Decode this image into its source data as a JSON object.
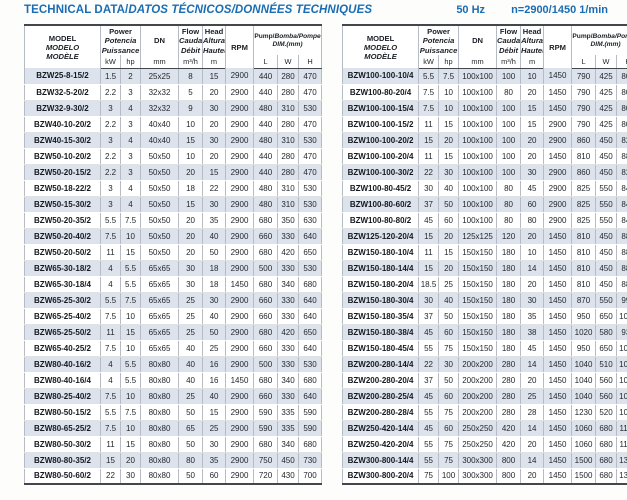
{
  "title": {
    "en": "TECHNICAL DATA/",
    "intl": "DATOS TÉCNICOS/DONNÉES TECHNIQUES"
  },
  "specs": {
    "frequency": "50 Hz",
    "speed": "n=2900/1450 1/min"
  },
  "colors": {
    "accent_blue": "#1a6db3",
    "row_shade": "#dde3ed",
    "border_dark": "#43474d",
    "grid_line": "#b6bcc6"
  },
  "header": {
    "model": [
      "MODEL",
      "MODELO",
      "MODÈLE"
    ],
    "power": [
      "Power",
      "Potencia",
      "Puissance"
    ],
    "dn": "DN",
    "flow": [
      "Flow",
      "Caudal",
      "Débit"
    ],
    "head": [
      "Head",
      "Altura",
      "Hauteur"
    ],
    "rpm": "RPM",
    "dim": [
      "Pump/",
      "Bomba/Pompe",
      "DIM.(mm)"
    ],
    "units": {
      "kw": "kW",
      "hp": "hp",
      "dn": "mm",
      "flow": "m³/h",
      "head": "m",
      "l": "L",
      "w": "W",
      "h": "H"
    }
  },
  "left_table": {
    "rows": [
      [
        "BZW25-8-15/2",
        "1.5",
        "2",
        "25x25",
        "8",
        "15",
        "2900",
        "440",
        "280",
        "470"
      ],
      [
        "BZW32-5-20/2",
        "2.2",
        "3",
        "32x32",
        "5",
        "20",
        "2900",
        "440",
        "280",
        "470"
      ],
      [
        "BZW32-9-30/2",
        "3",
        "4",
        "32x32",
        "9",
        "30",
        "2900",
        "480",
        "310",
        "530"
      ],
      [
        "BZW40-10-20/2",
        "2.2",
        "3",
        "40x40",
        "10",
        "20",
        "2900",
        "440",
        "280",
        "470"
      ],
      [
        "BZW40-15-30/2",
        "3",
        "4",
        "40x40",
        "15",
        "30",
        "2900",
        "480",
        "310",
        "530"
      ],
      [
        "BZW50-10-20/2",
        "2.2",
        "3",
        "50x50",
        "10",
        "20",
        "2900",
        "440",
        "280",
        "470"
      ],
      [
        "BZW50-20-15/2",
        "2.2",
        "3",
        "50x50",
        "20",
        "15",
        "2900",
        "440",
        "280",
        "470"
      ],
      [
        "BZW50-18-22/2",
        "3",
        "4",
        "50x50",
        "18",
        "22",
        "2900",
        "480",
        "310",
        "530"
      ],
      [
        "BZW50-15-30/2",
        "3",
        "4",
        "50x50",
        "15",
        "30",
        "2900",
        "480",
        "310",
        "530"
      ],
      [
        "BZW50-20-35/2",
        "5.5",
        "7.5",
        "50x50",
        "20",
        "35",
        "2900",
        "680",
        "350",
        "630"
      ],
      [
        "BZW50-20-40/2",
        "7.5",
        "10",
        "50x50",
        "20",
        "40",
        "2900",
        "660",
        "330",
        "640"
      ],
      [
        "BZW50-20-50/2",
        "11",
        "15",
        "50x50",
        "20",
        "50",
        "2900",
        "680",
        "420",
        "650"
      ],
      [
        "BZW65-30-18/2",
        "4",
        "5.5",
        "65x65",
        "30",
        "18",
        "2900",
        "500",
        "330",
        "530"
      ],
      [
        "BZW65-30-18/4",
        "4",
        "5.5",
        "65x65",
        "30",
        "18",
        "1450",
        "680",
        "340",
        "680"
      ],
      [
        "BZW65-25-30/2",
        "5.5",
        "7.5",
        "65x65",
        "25",
        "30",
        "2900",
        "660",
        "330",
        "640"
      ],
      [
        "BZW65-25-40/2",
        "7.5",
        "10",
        "65x65",
        "25",
        "40",
        "2900",
        "660",
        "330",
        "640"
      ],
      [
        "BZW65-25-50/2",
        "11",
        "15",
        "65x65",
        "25",
        "50",
        "2900",
        "680",
        "420",
        "650"
      ],
      [
        "BZW65-40-25/2",
        "7.5",
        "10",
        "65x65",
        "40",
        "25",
        "2900",
        "660",
        "330",
        "640"
      ],
      [
        "BZW80-40-16/2",
        "4",
        "5.5",
        "80x80",
        "40",
        "16",
        "2900",
        "500",
        "330",
        "530"
      ],
      [
        "BZW80-40-16/4",
        "4",
        "5.5",
        "80x80",
        "40",
        "16",
        "1450",
        "680",
        "340",
        "680"
      ],
      [
        "BZW80-25-40/2",
        "7.5",
        "10",
        "80x80",
        "25",
        "40",
        "2900",
        "660",
        "330",
        "640"
      ],
      [
        "BZW80-50-15/2",
        "5.5",
        "7.5",
        "80x80",
        "50",
        "15",
        "2900",
        "590",
        "335",
        "590"
      ],
      [
        "BZW80-65-25/2",
        "7.5",
        "10",
        "80x80",
        "65",
        "25",
        "2900",
        "590",
        "335",
        "590"
      ],
      [
        "BZW80-50-30/2",
        "11",
        "15",
        "80x80",
        "50",
        "30",
        "2900",
        "680",
        "340",
        "680"
      ],
      [
        "BZW80-80-35/2",
        "15",
        "20",
        "80x80",
        "80",
        "35",
        "2900",
        "750",
        "450",
        "730"
      ],
      [
        "BZW80-50-60/2",
        "22",
        "30",
        "80x80",
        "50",
        "60",
        "2900",
        "720",
        "430",
        "700"
      ]
    ]
  },
  "right_table": {
    "rows": [
      [
        "BZW100-100-10/4",
        "5.5",
        "7.5",
        "100x100",
        "100",
        "10",
        "1450",
        "790",
        "425",
        "800"
      ],
      [
        "BZW100-80-20/4",
        "7.5",
        "10",
        "100x100",
        "80",
        "20",
        "1450",
        "790",
        "425",
        "800"
      ],
      [
        "BZW100-100-15/4",
        "7.5",
        "10",
        "100x100",
        "100",
        "15",
        "1450",
        "790",
        "425",
        "800"
      ],
      [
        "BZW100-100-15/2",
        "11",
        "15",
        "100x100",
        "100",
        "15",
        "2900",
        "790",
        "425",
        "800"
      ],
      [
        "BZW100-100-20/2",
        "15",
        "20",
        "100x100",
        "100",
        "20",
        "2900",
        "860",
        "450",
        "820"
      ],
      [
        "BZW100-100-20/4",
        "11",
        "15",
        "100x100",
        "100",
        "20",
        "1450",
        "810",
        "450",
        "880"
      ],
      [
        "BZW100-100-30/2",
        "22",
        "30",
        "100x100",
        "100",
        "30",
        "2900",
        "860",
        "450",
        "820"
      ],
      [
        "BZW100-80-45/2",
        "30",
        "40",
        "100x100",
        "80",
        "45",
        "2900",
        "825",
        "550",
        "840"
      ],
      [
        "BZW100-80-60/2",
        "37",
        "50",
        "100x100",
        "80",
        "60",
        "2900",
        "825",
        "550",
        "840"
      ],
      [
        "BZW100-80-80/2",
        "45",
        "60",
        "100x100",
        "80",
        "80",
        "2900",
        "825",
        "550",
        "840"
      ],
      [
        "BZW125-120-20/4",
        "15",
        "20",
        "125x125",
        "120",
        "20",
        "1450",
        "810",
        "450",
        "880"
      ],
      [
        "BZW150-180-10/4",
        "11",
        "15",
        "150x150",
        "180",
        "10",
        "1450",
        "810",
        "450",
        "880"
      ],
      [
        "BZW150-180-14/4",
        "15",
        "20",
        "150x150",
        "180",
        "14",
        "1450",
        "810",
        "450",
        "880"
      ],
      [
        "BZW150-180-20/4",
        "18.5",
        "25",
        "150x150",
        "180",
        "20",
        "1450",
        "810",
        "450",
        "880"
      ],
      [
        "BZW150-180-30/4",
        "30",
        "40",
        "150x150",
        "180",
        "30",
        "1450",
        "870",
        "550",
        "990"
      ],
      [
        "BZW150-180-35/4",
        "37",
        "50",
        "150x150",
        "180",
        "35",
        "1450",
        "950",
        "650",
        "1065"
      ],
      [
        "BZW150-180-38/4",
        "45",
        "60",
        "150x150",
        "180",
        "38",
        "1450",
        "1020",
        "580",
        "930"
      ],
      [
        "BZW150-180-45/4",
        "55",
        "75",
        "150x150",
        "180",
        "45",
        "1450",
        "950",
        "650",
        "1065"
      ],
      [
        "BZW200-280-14/4",
        "22",
        "30",
        "200x200",
        "280",
        "14",
        "1450",
        "1040",
        "510",
        "1020"
      ],
      [
        "BZW200-280-20/4",
        "37",
        "50",
        "200x200",
        "280",
        "20",
        "1450",
        "1040",
        "560",
        "1020"
      ],
      [
        "BZW200-280-25/4",
        "45",
        "60",
        "200x200",
        "280",
        "25",
        "1450",
        "1040",
        "560",
        "1020"
      ],
      [
        "BZW200-280-28/4",
        "55",
        "75",
        "200x200",
        "280",
        "28",
        "1450",
        "1230",
        "520",
        "1030"
      ],
      [
        "BZW250-420-14/4",
        "45",
        "60",
        "250x250",
        "420",
        "14",
        "1450",
        "1060",
        "680",
        "1100"
      ],
      [
        "BZW250-420-20/4",
        "55",
        "75",
        "250x250",
        "420",
        "20",
        "1450",
        "1060",
        "680",
        "1100"
      ],
      [
        "BZW300-800-14/4",
        "55",
        "75",
        "300x300",
        "800",
        "14",
        "1450",
        "1500",
        "680",
        "1350"
      ],
      [
        "BZW300-800-20/4",
        "75",
        "100",
        "300x300",
        "800",
        "20",
        "1450",
        "1500",
        "680",
        "1350"
      ]
    ]
  }
}
